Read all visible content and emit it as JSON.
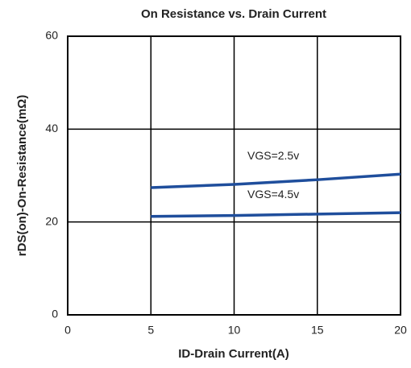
{
  "chart_data": {
    "type": "line",
    "title": "On Resistance vs. Drain Current",
    "x_label": "ID-Drain Current(A)",
    "y_label": "rDS(on)-On-Resistance(mΩ)",
    "x": [
      5,
      10,
      15,
      20
    ],
    "series": [
      {
        "name": "VGS=2.5v",
        "color": "#1f4e9c",
        "values": [
          27.4,
          28.1,
          29.1,
          30.3
        ]
      },
      {
        "name": "VGS=4.5v",
        "color": "#1f4e9c",
        "values": [
          21.2,
          21.4,
          21.7,
          22.0
        ]
      }
    ],
    "xlim": [
      0,
      20
    ],
    "xticks": [
      0,
      5,
      10,
      15,
      20
    ],
    "ylim": [
      0,
      60
    ],
    "yticks": [
      0,
      20,
      40,
      60
    ],
    "grid": true
  }
}
